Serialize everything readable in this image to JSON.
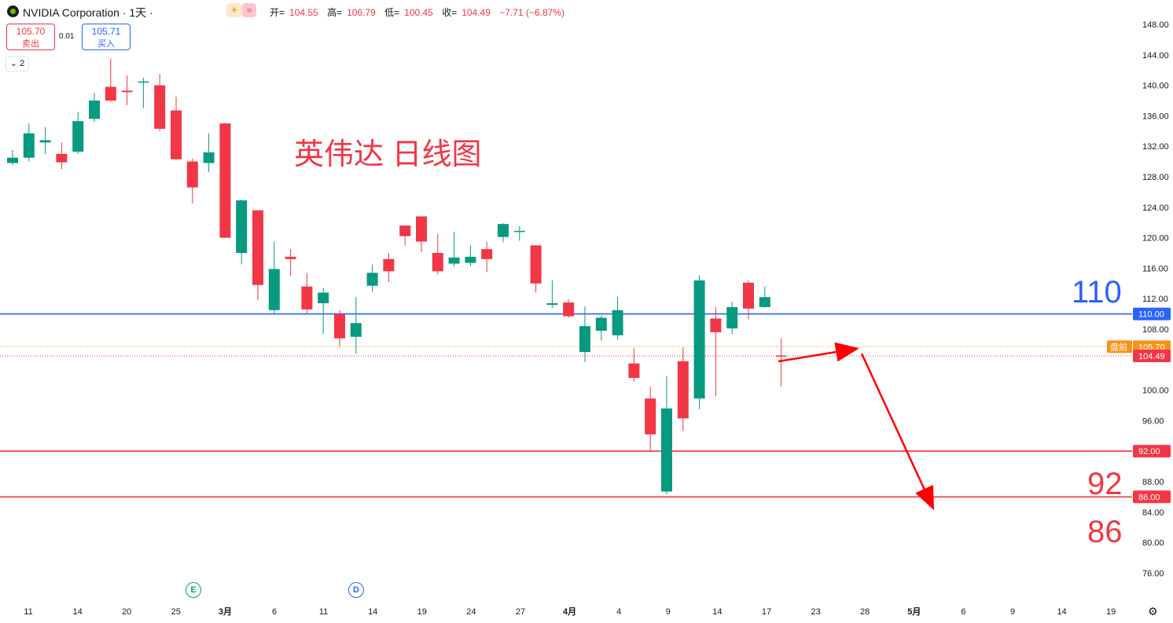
{
  "header": {
    "symbol": "NVIDIA Corporation · 1天 ·",
    "weather_icon": "sun-cloud-icon",
    "wave_icon": "wave-icon",
    "ohlc": {
      "open_label": "开=",
      "open": "104.55",
      "high_label": "高=",
      "high": "106.79",
      "low_label": "低=",
      "low": "100.45",
      "close_label": "收=",
      "close": "104.49",
      "change": "−7.71 (−6.87%)"
    }
  },
  "trade": {
    "sell_price": "105.70",
    "sell_label": "卖出",
    "spread": "0.01",
    "buy_price": "105.71",
    "buy_label": "买入"
  },
  "indicator_toggle": "2",
  "annotations": {
    "title": "英伟达 日线图",
    "level_110": "110",
    "level_92": "92",
    "level_86": "86",
    "event_e": "E",
    "event_d": "D"
  },
  "colors": {
    "up": "#089981",
    "down": "#f23645",
    "blue": "#2962ff",
    "orange": "#f7931a"
  },
  "chart_data": {
    "type": "candlestick",
    "y_range": [
      74,
      150
    ],
    "y_ticks": [
      "148.00",
      "144.00",
      "140.00",
      "136.00",
      "132.00",
      "128.00",
      "124.00",
      "120.00",
      "116.00",
      "112.00",
      "108.00",
      "100.00",
      "96.00",
      "92.00",
      "88.00",
      "84.00",
      "80.00",
      "76.00"
    ],
    "x_labels": [
      "11",
      "14",
      "20",
      "25",
      "3月",
      "6",
      "11",
      "14",
      "19",
      "24",
      "27",
      "4月",
      "4",
      "9",
      "14",
      "17",
      "23",
      "28",
      "5月",
      "6",
      "9",
      "14",
      "19"
    ],
    "candles": [
      {
        "i": 0,
        "o": 129.8,
        "h": 131.5,
        "l": 129.5,
        "c": 130.5
      },
      {
        "i": 1,
        "o": 130.5,
        "h": 135.0,
        "l": 130.0,
        "c": 133.7
      },
      {
        "i": 2,
        "o": 132.5,
        "h": 134.5,
        "l": 131.0,
        "c": 132.8
      },
      {
        "i": 3,
        "o": 131.0,
        "h": 132.5,
        "l": 129.0,
        "c": 129.9
      },
      {
        "i": 4,
        "o": 131.3,
        "h": 136.5,
        "l": 131.0,
        "c": 135.3
      },
      {
        "i": 5,
        "o": 135.6,
        "h": 139.0,
        "l": 135.2,
        "c": 138.0
      },
      {
        "i": 6,
        "o": 139.8,
        "h": 143.5,
        "l": 137.8,
        "c": 138.0
      },
      {
        "i": 7,
        "o": 139.3,
        "h": 141.3,
        "l": 137.4,
        "c": 139.1
      },
      {
        "i": 8,
        "o": 140.5,
        "h": 141.0,
        "l": 137.0,
        "c": 140.5
      },
      {
        "i": 9,
        "o": 140.0,
        "h": 141.5,
        "l": 134.0,
        "c": 134.3
      },
      {
        "i": 10,
        "o": 136.7,
        "h": 138.5,
        "l": 130.2,
        "c": 130.3
      },
      {
        "i": 11,
        "o": 130.0,
        "h": 130.4,
        "l": 124.5,
        "c": 126.6
      },
      {
        "i": 12,
        "o": 129.8,
        "h": 133.7,
        "l": 128.6,
        "c": 131.2
      },
      {
        "i": 13,
        "o": 135.0,
        "h": 135.0,
        "l": 120.0,
        "c": 120.0
      },
      {
        "i": 14,
        "o": 118.0,
        "h": 125.0,
        "l": 116.5,
        "c": 124.9
      },
      {
        "i": 15,
        "o": 123.6,
        "h": 123.6,
        "l": 111.8,
        "c": 113.8
      },
      {
        "i": 16,
        "o": 110.5,
        "h": 119.5,
        "l": 110.0,
        "c": 115.9
      },
      {
        "i": 17,
        "o": 117.5,
        "h": 118.5,
        "l": 115.0,
        "c": 117.2
      },
      {
        "i": 18,
        "o": 113.6,
        "h": 115.4,
        "l": 110.0,
        "c": 110.6
      },
      {
        "i": 19,
        "o": 111.4,
        "h": 113.4,
        "l": 107.4,
        "c": 112.8
      },
      {
        "i": 20,
        "o": 110.0,
        "h": 110.5,
        "l": 105.7,
        "c": 106.8
      },
      {
        "i": 21,
        "o": 107.0,
        "h": 112.2,
        "l": 104.8,
        "c": 108.8
      },
      {
        "i": 22,
        "o": 113.7,
        "h": 116.5,
        "l": 112.9,
        "c": 115.4
      },
      {
        "i": 23,
        "o": 117.2,
        "h": 118.0,
        "l": 114.2,
        "c": 115.6
      },
      {
        "i": 24,
        "o": 121.6,
        "h": 121.6,
        "l": 119.0,
        "c": 120.2
      },
      {
        "i": 25,
        "o": 122.8,
        "h": 122.8,
        "l": 118.1,
        "c": 119.5
      },
      {
        "i": 26,
        "o": 118.0,
        "h": 120.5,
        "l": 115.2,
        "c": 115.6
      },
      {
        "i": 27,
        "o": 116.6,
        "h": 120.8,
        "l": 116.2,
        "c": 117.4
      },
      {
        "i": 28,
        "o": 116.7,
        "h": 119.0,
        "l": 116.3,
        "c": 117.5
      },
      {
        "i": 29,
        "o": 118.5,
        "h": 119.5,
        "l": 115.5,
        "c": 117.2
      },
      {
        "i": 30,
        "o": 120.1,
        "h": 121.9,
        "l": 119.4,
        "c": 121.8
      },
      {
        "i": 31,
        "o": 120.9,
        "h": 121.5,
        "l": 119.6,
        "c": 120.9
      },
      {
        "i": 32,
        "o": 119.0,
        "h": 119.0,
        "l": 112.8,
        "c": 114.0
      },
      {
        "i": 33,
        "o": 111.2,
        "h": 114.4,
        "l": 110.8,
        "c": 111.4
      },
      {
        "i": 34,
        "o": 111.5,
        "h": 111.9,
        "l": 109.5,
        "c": 109.7
      },
      {
        "i": 35,
        "o": 105.0,
        "h": 111.0,
        "l": 103.7,
        "c": 108.4
      },
      {
        "i": 36,
        "o": 107.8,
        "h": 109.8,
        "l": 106.5,
        "c": 109.5
      },
      {
        "i": 37,
        "o": 107.2,
        "h": 112.2,
        "l": 106.6,
        "c": 110.5
      },
      {
        "i": 38,
        "o": 103.5,
        "h": 105.5,
        "l": 101.1,
        "c": 101.6
      },
      {
        "i": 39,
        "o": 98.9,
        "h": 100.4,
        "l": 92.0,
        "c": 94.2
      },
      {
        "i": 40,
        "o": 86.7,
        "h": 101.8,
        "l": 86.3,
        "c": 97.6
      },
      {
        "i": 41,
        "o": 103.8,
        "h": 105.6,
        "l": 94.6,
        "c": 96.3
      },
      {
        "i": 42,
        "o": 98.9,
        "h": 115.1,
        "l": 97.5,
        "c": 114.4
      },
      {
        "i": 43,
        "o": 109.4,
        "h": 110.9,
        "l": 99.2,
        "c": 107.6
      },
      {
        "i": 44,
        "o": 108.1,
        "h": 111.6,
        "l": 107.3,
        "c": 110.9
      },
      {
        "i": 45,
        "o": 114.1,
        "h": 114.4,
        "l": 109.3,
        "c": 110.7
      },
      {
        "i": 46,
        "o": 110.9,
        "h": 113.6,
        "l": 110.8,
        "c": 112.2
      },
      {
        "i": 47,
        "o": 104.55,
        "h": 106.79,
        "l": 100.45,
        "c": 104.49
      }
    ],
    "h_lines": [
      {
        "price": 110.0,
        "label": "110.00",
        "color": "#2962ff",
        "style": "solid"
      },
      {
        "price": 92.0,
        "label": "92.00",
        "color": "#f23645",
        "style": "solid"
      },
      {
        "price": 86.0,
        "label": "86.00",
        "color": "#f23645",
        "style": "solid"
      },
      {
        "price": 105.7,
        "label": "105.70",
        "tag": "盘前",
        "color": "#f7931a",
        "style": "dotted"
      },
      {
        "price": 104.49,
        "label": "104.49",
        "color": "#f23645",
        "style": "dotted"
      }
    ]
  }
}
